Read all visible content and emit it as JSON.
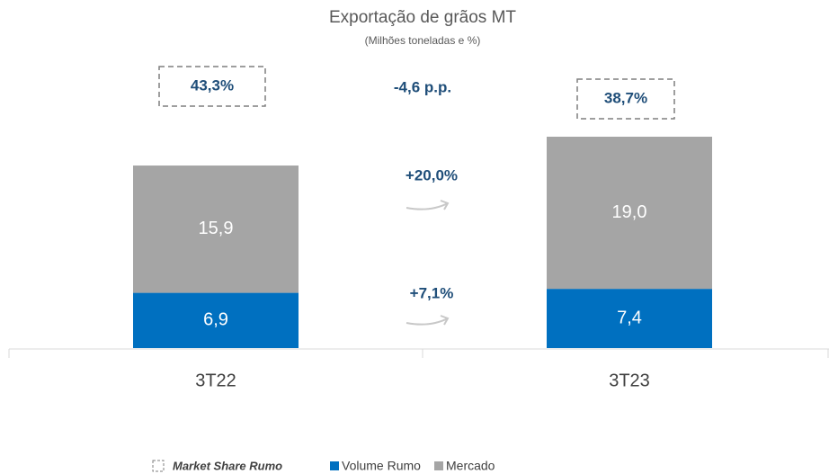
{
  "chart_data": {
    "type": "bar",
    "stacked": true,
    "title": "Exportação de grãos MT",
    "subtitle": "(Milhões toneladas e %)",
    "categories": [
      "3T22",
      "3T23"
    ],
    "series": [
      {
        "name": "Volume Rumo",
        "color": "#0070c0",
        "values": [
          6.9,
          7.4
        ],
        "value_labels": [
          "6,9",
          "7,4"
        ]
      },
      {
        "name": "Mercado",
        "color": "#a5a5a5",
        "values": [
          15.9,
          19.0
        ],
        "value_labels": [
          "15,9",
          "19,0"
        ]
      }
    ],
    "market_share": {
      "name": "Market Share Rumo",
      "values": [
        43.3,
        38.7
      ],
      "value_labels": [
        "43,3%",
        "38,7%"
      ]
    },
    "annotations": [
      "-4,6 p.p.",
      "+20,0%",
      "+7,1%"
    ]
  }
}
